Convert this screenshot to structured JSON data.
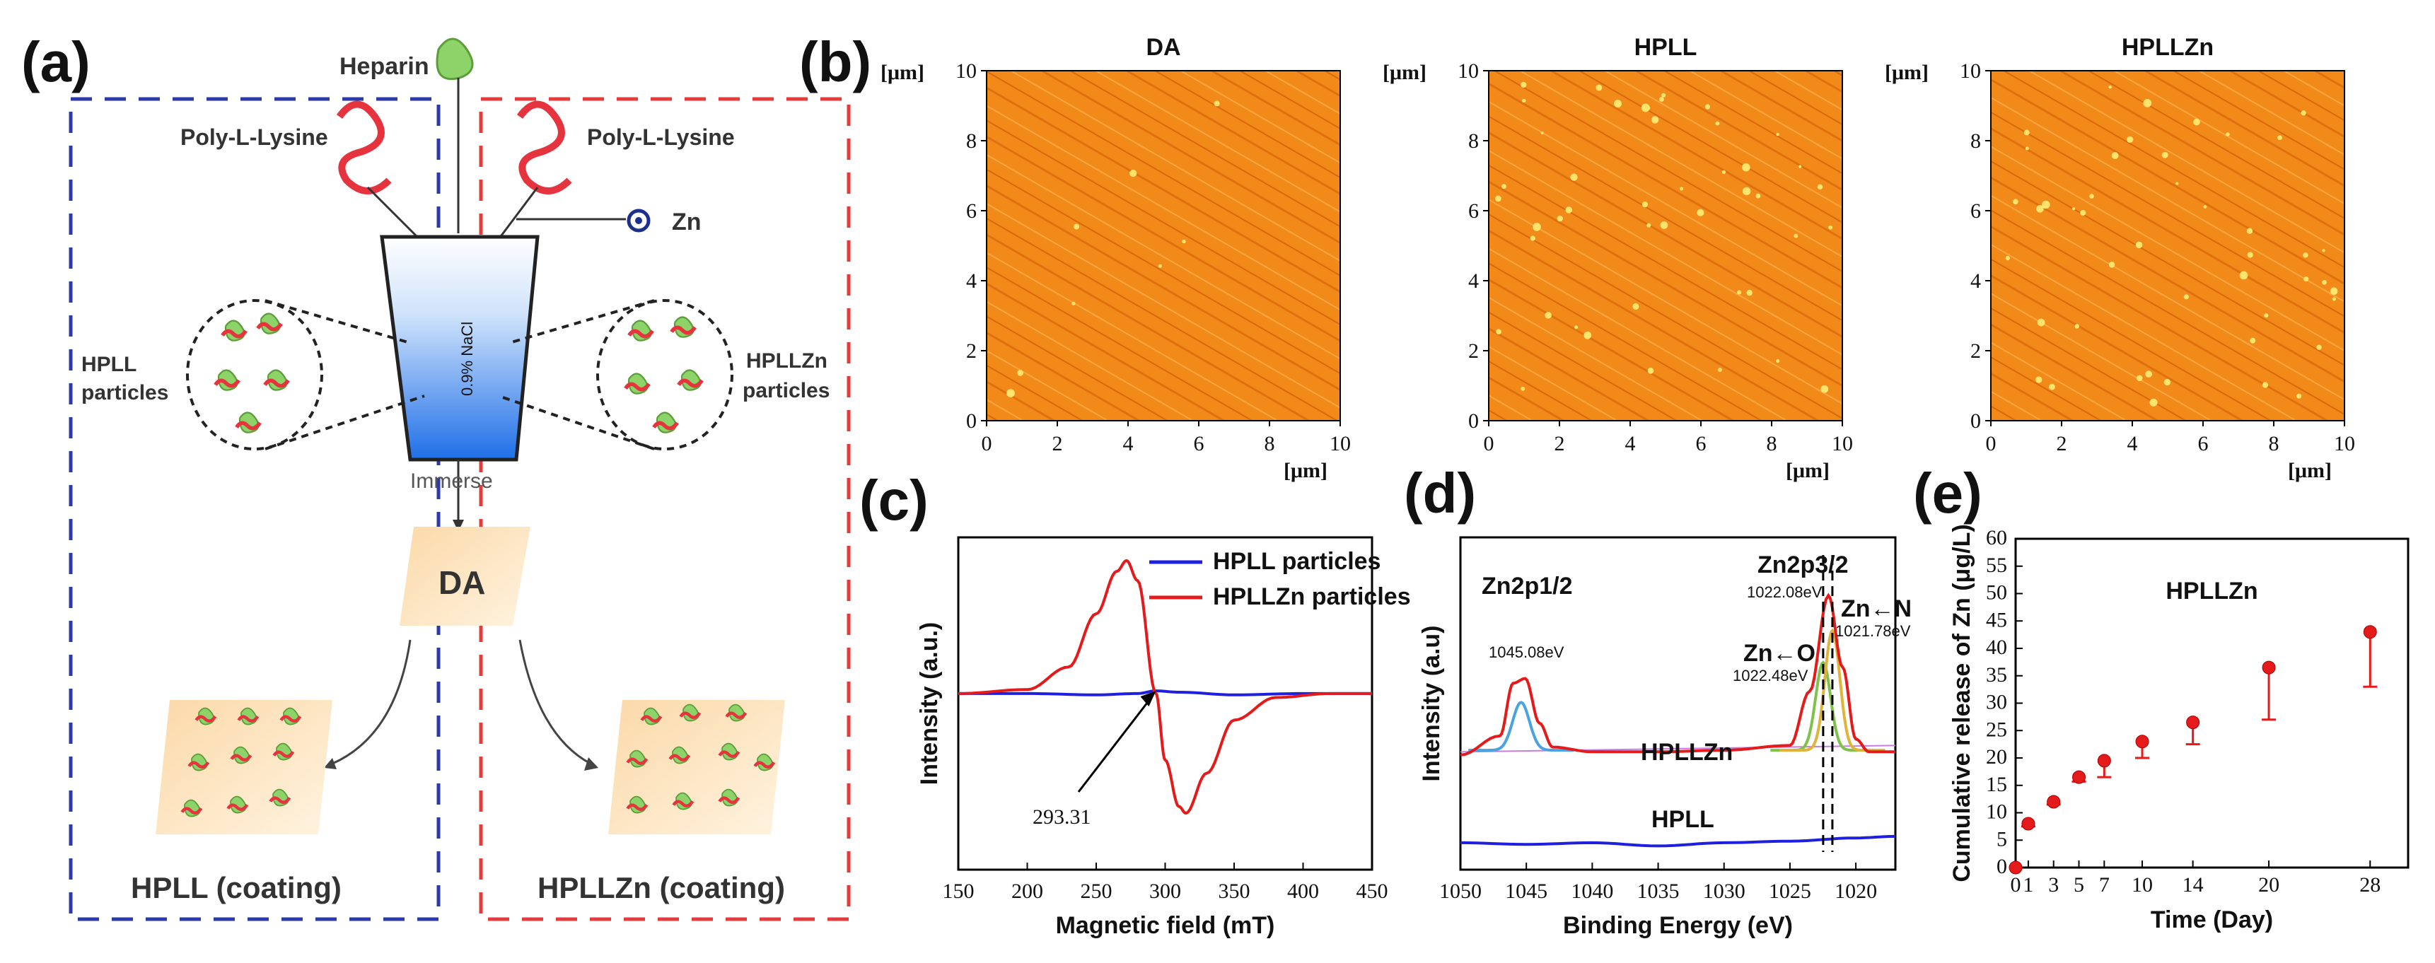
{
  "figure": {
    "panel_labels": [
      "(a)",
      "(b)",
      "(c)",
      "(d)",
      "(e)"
    ]
  },
  "schematic": {
    "heparin_label": "Heparin",
    "pll_left_label": "Poly-L-Lysine",
    "pll_right_label": "Poly-L-Lysine",
    "zn_label": "Zn",
    "beaker_label": "0.9% NaCl",
    "hpll_particles_label": "HPLL",
    "hpll_particles_label2": "particles",
    "hpllzn_particles_label": "HPLLZn",
    "hpllzn_particles_label2": "particles",
    "immerse_label": "Immerse",
    "substrate_label": "DA",
    "coating_left": "HPLL (coating)",
    "coating_right": "HPLLZn (coating)"
  },
  "afm": {
    "unit": "[μm]",
    "ticks": [
      "0",
      "2",
      "4",
      "6",
      "8",
      "10"
    ],
    "titles": [
      "DA",
      "HPLL",
      "HPLLZn"
    ]
  },
  "chart_data": [
    {
      "id": "c",
      "type": "line",
      "xlabel": "Magnetic field (mT)",
      "ylabel": "Intensity (a.u.)",
      "xlim": [
        150,
        450
      ],
      "xticks": [
        "150",
        "200",
        "250",
        "300",
        "350",
        "400",
        "450"
      ],
      "annotation": "293.31",
      "series": [
        {
          "name": "HPLL particles",
          "color": "#1f1fe0",
          "x": [
            150,
            200,
            250,
            280,
            293.31,
            310,
            350,
            400,
            450
          ],
          "y": [
            0.0,
            0.0,
            -0.01,
            0.0,
            0.02,
            0.01,
            -0.01,
            0.0,
            0.0
          ]
        },
        {
          "name": "HPLLZn particles",
          "color": "#e51a1a",
          "x": [
            150,
            200,
            230,
            250,
            265,
            272,
            280,
            293.31,
            300,
            310,
            315,
            330,
            350,
            380,
            420,
            450
          ],
          "y": [
            0.0,
            0.03,
            0.2,
            0.6,
            0.92,
            1.0,
            0.85,
            0.0,
            -0.5,
            -0.85,
            -0.9,
            -0.6,
            -0.2,
            -0.03,
            0.0,
            0.0
          ]
        }
      ]
    },
    {
      "id": "d",
      "type": "line",
      "xlabel": "Binding Energy (eV)",
      "ylabel": "Intensity (a.u)",
      "xlim": [
        1050,
        1017
      ],
      "xticks": [
        "1050",
        "1045",
        "1040",
        "1035",
        "1030",
        "1025",
        "1020"
      ],
      "annotations": [
        "Zn2p1/2",
        "Zn2p3/2",
        "1022.08eV",
        "Zn←N",
        "1021.78eV",
        "Zn←O",
        "1022.48eV",
        "1045.08eV",
        "HPLLZn",
        "HPLL"
      ],
      "series": [
        {
          "name": "HPLLZn",
          "color": "#e51a1a",
          "x": [
            1050,
            1047,
            1046,
            1045.08,
            1044,
            1043,
            1040,
            1035,
            1030,
            1025,
            1023.5,
            1022.08,
            1021,
            1020,
            1019,
            1017
          ],
          "y": [
            0.0,
            0.12,
            0.45,
            0.48,
            0.2,
            0.05,
            0.02,
            0.02,
            0.03,
            0.06,
            0.4,
            1.0,
            0.55,
            0.1,
            0.02,
            0.02
          ]
        },
        {
          "name": "HPLL",
          "color": "#1f1fe0",
          "x": [
            1050,
            1045,
            1040,
            1035,
            1030,
            1025,
            1020,
            1017
          ],
          "y": [
            -0.55,
            -0.56,
            -0.55,
            -0.57,
            -0.55,
            -0.54,
            -0.52,
            -0.51
          ]
        }
      ]
    },
    {
      "id": "e",
      "type": "scatter",
      "title": "HPLLZn",
      "xlabel": "Time (Day)",
      "ylabel": "Cumulative release of Zn (μg/L)",
      "ylim": [
        0,
        60
      ],
      "yticks": [
        "0",
        "5",
        "10",
        "15",
        "20",
        "25",
        "30",
        "35",
        "40",
        "45",
        "50",
        "55",
        "60"
      ],
      "xticks": [
        "0",
        "1",
        "3",
        "5",
        "7",
        "10",
        "14",
        "20",
        "28"
      ],
      "x": [
        0,
        1,
        3,
        5,
        7,
        10,
        14,
        20,
        28
      ],
      "y": [
        0,
        8,
        12,
        16.5,
        19.5,
        23,
        26.5,
        36.5,
        43
      ],
      "err_low": [
        0,
        0.5,
        0.5,
        0.8,
        3,
        3,
        4,
        9.5,
        10
      ],
      "color": "#e51a1a"
    }
  ]
}
